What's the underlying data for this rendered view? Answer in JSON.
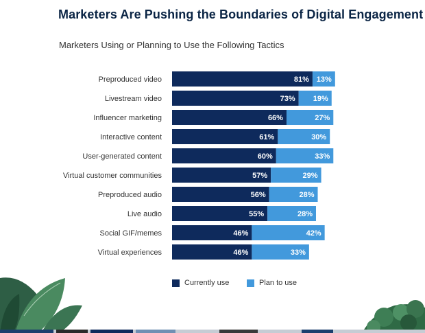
{
  "header": {
    "title": "Marketers Are Pushing the Boundaries of Digital Engagement",
    "subtitle": "Marketers Using or Planning to Use the Following Tactics"
  },
  "colors": {
    "current": "#0e2a5c",
    "plan": "#4299dc",
    "label_text": "#333333"
  },
  "chart_data": {
    "type": "bar",
    "orientation": "horizontal",
    "stacked": true,
    "unit": "%",
    "categories": [
      "Preproduced video",
      "Livestream video",
      "Influencer marketing",
      "Interactive content",
      "User-generated content",
      "Virtual customer communities",
      "Preproduced audio",
      "Live audio",
      "Social GIF/memes",
      "Virtual experiences"
    ],
    "series": [
      {
        "name": "Currently use",
        "values": [
          81,
          73,
          66,
          61,
          60,
          57,
          56,
          55,
          46,
          46
        ]
      },
      {
        "name": "Plan to use",
        "values": [
          13,
          19,
          27,
          30,
          33,
          29,
          28,
          28,
          42,
          33
        ]
      }
    ],
    "data_labels": [
      [
        "81%",
        "73%",
        "66%",
        "61%",
        "60%",
        "57%",
        "56%",
        "55%",
        "46%",
        "46%"
      ],
      [
        "13%",
        "19%",
        "27%",
        "30%",
        "33%",
        "29%",
        "28%",
        "28%",
        "42%",
        "33%"
      ]
    ],
    "legend_position": "bottom",
    "grid": false,
    "xlim": [
      0,
      100
    ]
  }
}
